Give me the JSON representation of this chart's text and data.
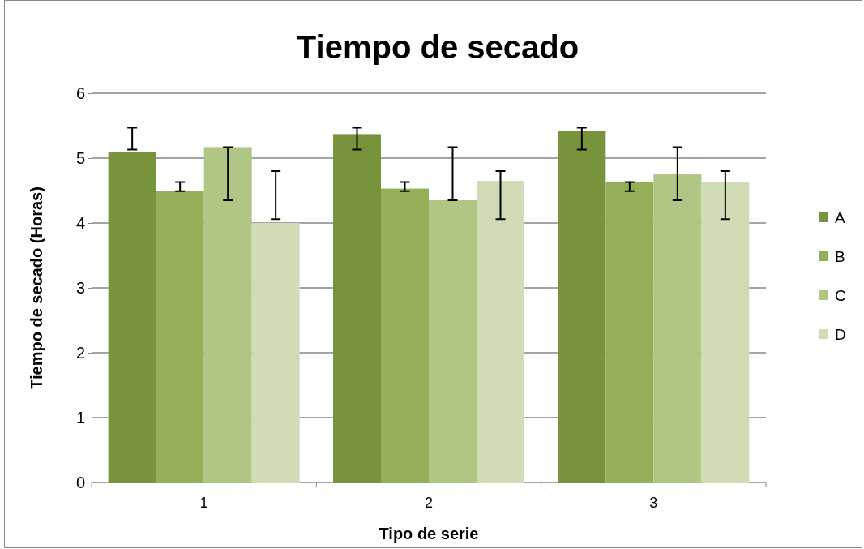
{
  "chart_data": {
    "type": "bar",
    "title": "Tiempo de secado",
    "xlabel": "Tipo de serie",
    "ylabel": "Tiempo de secado (Horas)",
    "categories": [
      "1",
      "2",
      "3"
    ],
    "series": [
      {
        "name": "A",
        "color": "#77933c",
        "values": [
          5.1,
          5.37,
          5.42
        ],
        "errors": [
          [
            5.13,
            5.47
          ],
          [
            5.13,
            5.47
          ],
          [
            5.13,
            5.47
          ]
        ]
      },
      {
        "name": "B",
        "color": "#93b058",
        "values": [
          4.5,
          4.53,
          4.63
        ],
        "errors": [
          [
            4.49,
            4.63
          ],
          [
            4.49,
            4.63
          ],
          [
            4.49,
            4.63
          ]
        ]
      },
      {
        "name": "C",
        "color": "#afc685",
        "values": [
          5.17,
          4.35,
          4.75
        ],
        "errors": [
          [
            4.35,
            5.17
          ],
          [
            4.35,
            5.17
          ],
          [
            4.35,
            5.17
          ]
        ]
      },
      {
        "name": "D",
        "color": "#d0dcb6",
        "values": [
          4.0,
          4.65,
          4.63
        ],
        "errors": [
          [
            4.06,
            4.8
          ],
          [
            4.06,
            4.8
          ],
          [
            4.06,
            4.8
          ]
        ]
      }
    ],
    "ylim": [
      0,
      6
    ],
    "yticks": [
      0,
      1,
      2,
      3,
      4,
      5,
      6
    ],
    "grid": "y",
    "legend": "right"
  }
}
